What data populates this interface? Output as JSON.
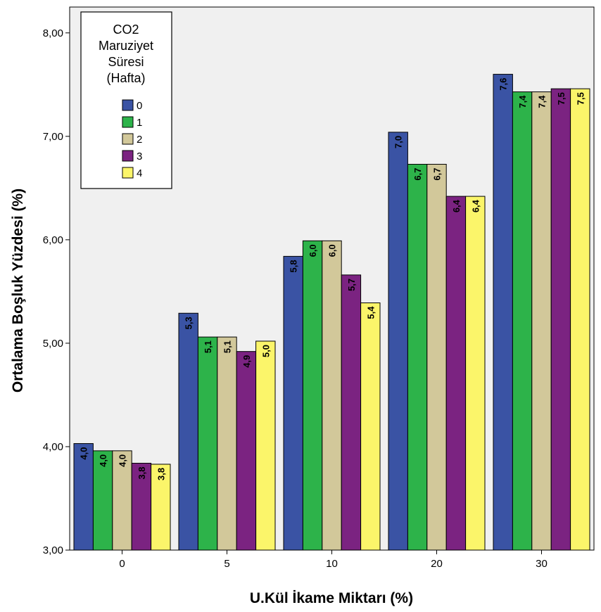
{
  "chart_data": {
    "type": "bar",
    "xlabel": "U.Kül İkame Miktarı (%)",
    "ylabel": "Ortalama Boşluk Yüzdesi (%)",
    "categories": [
      "0",
      "5",
      "10",
      "20",
      "30"
    ],
    "ylim": [
      3.0,
      8.25
    ],
    "yticks": [
      "3,00",
      "4,00",
      "5,00",
      "6,00",
      "7,00",
      "8,00"
    ],
    "grid": false,
    "legend": {
      "title_lines": [
        "CO2",
        "Maruziyet",
        "Süresi",
        "(Hafta)"
      ],
      "placement": "top-left"
    },
    "series": [
      {
        "name": "0",
        "color": "#3a53a4",
        "values": [
          4.03,
          5.29,
          5.84,
          7.04,
          7.6
        ],
        "labels": [
          "4,0",
          "5,3",
          "5,8",
          "7,0",
          "7,6"
        ]
      },
      {
        "name": "1",
        "color": "#2db34a",
        "values": [
          3.96,
          5.06,
          5.99,
          6.73,
          7.43
        ],
        "labels": [
          "4,0",
          "5,1",
          "6,0",
          "6,7",
          "7,4"
        ]
      },
      {
        "name": "2",
        "color": "#d2c89a",
        "values": [
          3.96,
          5.06,
          5.99,
          6.73,
          7.43
        ],
        "labels": [
          "4,0",
          "5,1",
          "6,0",
          "6,7",
          "7,4"
        ]
      },
      {
        "name": "3",
        "color": "#7b2381",
        "values": [
          3.84,
          4.92,
          5.66,
          6.42,
          7.46
        ],
        "labels": [
          "3,8",
          "4,9",
          "5,7",
          "6,4",
          "7,5"
        ]
      },
      {
        "name": "4",
        "color": "#fbf56a",
        "values": [
          3.83,
          5.02,
          5.39,
          6.42,
          7.46
        ],
        "labels": [
          "3,8",
          "5,0",
          "5,4",
          "6,4",
          "7,5"
        ]
      }
    ]
  }
}
